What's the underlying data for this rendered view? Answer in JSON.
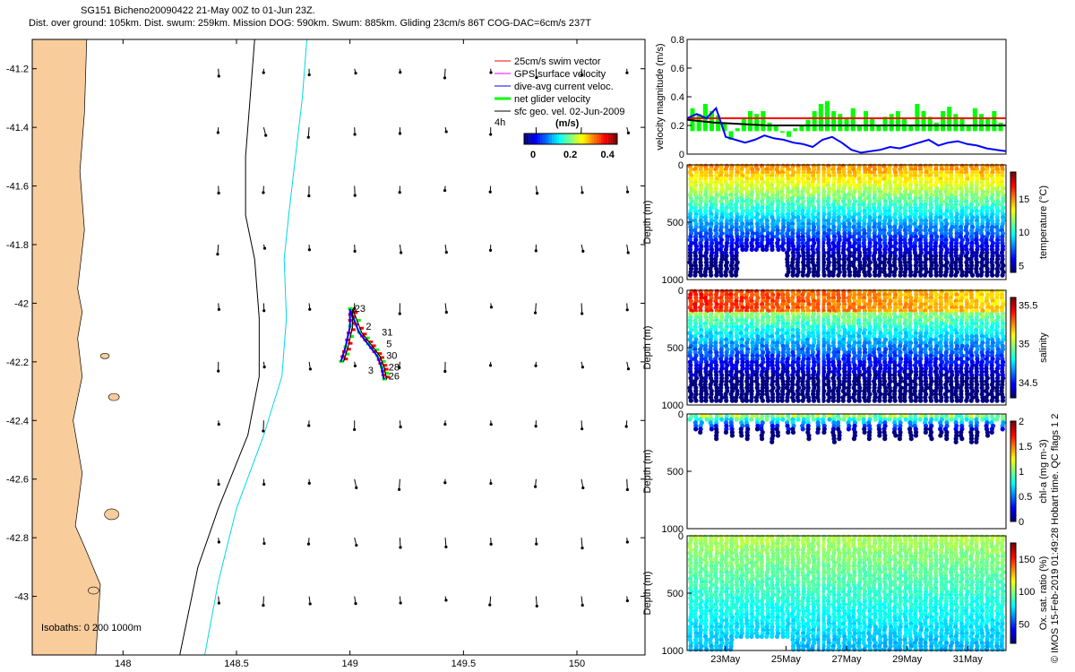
{
  "header": {
    "line1": "SG151 Bicheno20090422 21-May 00Z to 01-Jun 23Z.",
    "line2": "Dist. over ground: 105km. Dist. swum: 259km. Mission DOG: 590km. Swum: 885km. Gliding 23cm/s 86T COG-DAC=6cm/s 237T"
  },
  "side_note": "© IMOS 15-Feb-2019 01:49:28 Hobart time. QC flags 1  2",
  "colors": {
    "land": "#f9cc9c",
    "isobath_200": "#000000",
    "isobath_1000": "#00d8e8",
    "swim_vector": "#ff0000",
    "gps_velocity": "#ff00ff",
    "dac_velocity": "#0000ff",
    "net_velocity": "#00ff00",
    "geo_velocity": "#000000"
  },
  "chart_data": [
    {
      "type": "map",
      "xlim": [
        147.6,
        150.3
      ],
      "ylim": [
        -43.2,
        -41.1
      ],
      "xticks": [
        "148",
        "148.5",
        "149",
        "149.5",
        "150"
      ],
      "yticks": [
        "-41.2",
        "-41.4",
        "-41.6",
        "-41.8",
        "-42",
        "-42.2",
        "-42.4",
        "-42.6",
        "-42.8",
        "-43"
      ],
      "isobaths_label": "Isobaths: 0   200   1000m",
      "legend": {
        "position": "top-right",
        "entries": [
          "25cm/s swim vector",
          "GPS surface velocity",
          "dive-avg current veloc.",
          "net glider velocity",
          "sfc geo. vel. 02-Jun-2009"
        ]
      },
      "colorbar": {
        "label": "(m/s)",
        "ticks": [
          "0",
          "0.2",
          "0.4"
        ],
        "range": [
          0,
          0.5
        ],
        "extra_label": "4h"
      },
      "track_day_labels": [
        "23",
        "2",
        "31",
        "5",
        "30",
        "28",
        "3",
        "26"
      ]
    },
    {
      "type": "line",
      "ylabel": "velocity magnitude (m/s)",
      "ylim": [
        0,
        0.8
      ],
      "yticks": [
        "0",
        "0.2",
        "0.4",
        "0.6",
        "0.8"
      ],
      "series": [
        {
          "color": "#ff0000",
          "values": [
            0.25,
            0.25
          ]
        },
        {
          "color": "#000000",
          "values": [
            0.24,
            0.22,
            0.21,
            0.2,
            0.2,
            0.2,
            0.2,
            0.2,
            0.2,
            0.2,
            0.2,
            0.2,
            0.2
          ]
        },
        {
          "color": "#0000ff",
          "values": [
            0.25,
            0.28,
            0.25,
            0.32,
            0.12,
            0.1,
            0.08,
            0.1,
            0.13,
            0.11,
            0.1,
            0.08,
            0.07,
            0.05,
            0.1,
            0.12,
            0.08,
            0.03,
            0.01,
            0.02,
            0.03,
            0.05,
            0.04,
            0.06,
            0.08,
            0.1,
            0.06,
            0.08,
            0.09,
            0.07,
            0.06,
            0.04,
            0.03,
            0.02
          ]
        }
      ],
      "bars": [
        0.32,
        0.28,
        0.35,
        0.3,
        0.27,
        0.22,
        0.1,
        0.18,
        0.25,
        0.3,
        0.28,
        0.3,
        0.22,
        0.2,
        0.15,
        0.12,
        0.18,
        0.2,
        0.24,
        0.3,
        0.35,
        0.37,
        0.3,
        0.28,
        0.25,
        0.32,
        0.2,
        0.3,
        0.25,
        0.2,
        0.26,
        0.28,
        0.3,
        0.25,
        0.2,
        0.35,
        0.3,
        0.26,
        0.22,
        0.3,
        0.33,
        0.28,
        0.25,
        0.2,
        0.32,
        0.28,
        0.25,
        0.3,
        0.22
      ]
    },
    {
      "type": "heatmap",
      "ylabel": "Depth (m)",
      "ylim": [
        1000,
        0
      ],
      "yticks": [
        "0",
        "500",
        "1000"
      ],
      "colorbar_label": "temperature (°C)",
      "colorbar_ticks": [
        "5",
        "10",
        "15"
      ],
      "colorbar_range": [
        4,
        19
      ]
    },
    {
      "type": "heatmap",
      "ylabel": "Depth (m)",
      "ylim": [
        1000,
        0
      ],
      "yticks": [
        "0",
        "500",
        "1000"
      ],
      "colorbar_label": "salinity",
      "colorbar_ticks": [
        "34.5",
        "35",
        "35.5"
      ],
      "colorbar_range": [
        34.3,
        35.6
      ]
    },
    {
      "type": "heatmap",
      "ylabel": "Depth (m)",
      "ylim": [
        1000,
        0
      ],
      "yticks": [
        "0",
        "500",
        "1000"
      ],
      "colorbar_label": "chl-a (mg m-3)",
      "colorbar_ticks": [
        "0",
        "0.5",
        "1",
        "1.5",
        "2"
      ],
      "colorbar_range": [
        0,
        2
      ]
    },
    {
      "type": "heatmap",
      "ylabel": "Depth (m)",
      "ylim": [
        1000,
        0
      ],
      "yticks": [
        "0",
        "500",
        "1000"
      ],
      "colorbar_label": "Ox. sat. ratio (%)",
      "colorbar_ticks": [
        "50",
        "100",
        "150"
      ],
      "colorbar_range": [
        20,
        175
      ],
      "xticks": [
        "23May",
        "25May",
        "27May",
        "29May",
        "31May"
      ]
    }
  ]
}
